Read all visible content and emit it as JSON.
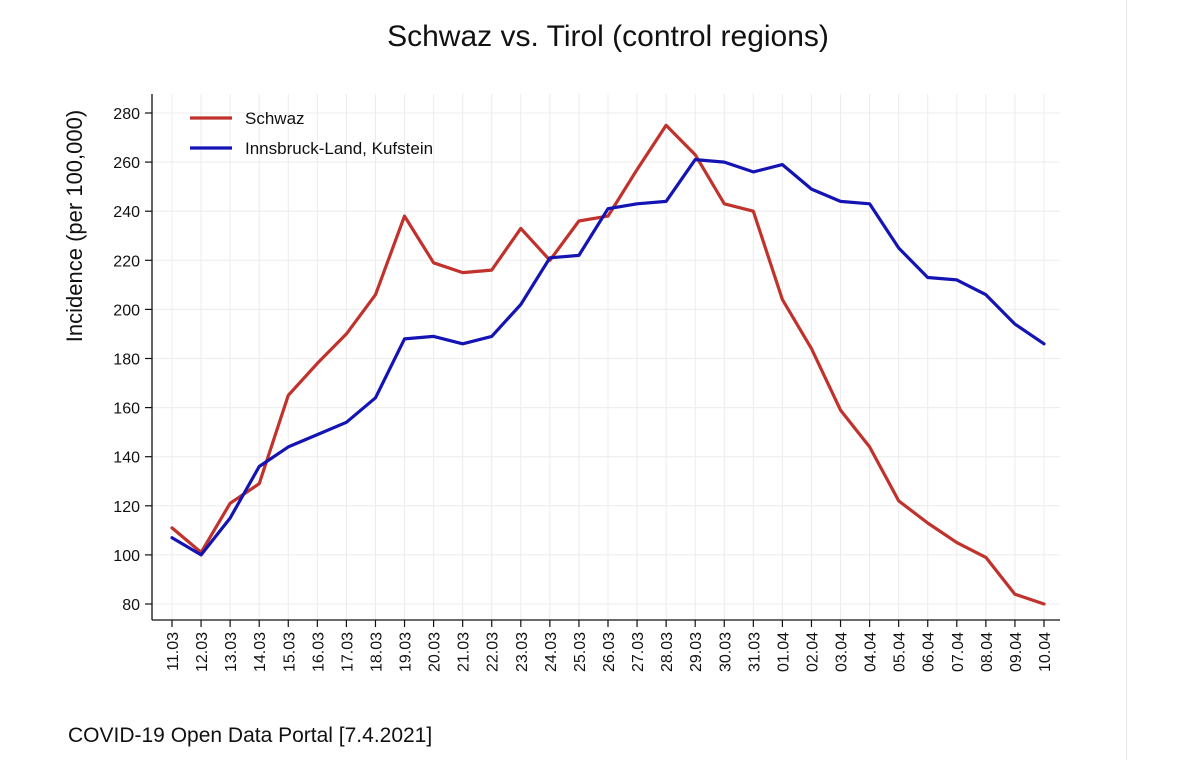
{
  "chart_data": {
    "type": "line",
    "title": "Schwaz vs. Tirol (control regions)",
    "xlabel": "",
    "ylabel": "Incidence (per 100,000)",
    "ylim": [
      80,
      280
    ],
    "yticks": [
      80,
      100,
      120,
      140,
      160,
      180,
      200,
      220,
      240,
      260,
      280
    ],
    "grid": true,
    "legend_position": "top-left",
    "categories": [
      "11.03",
      "12.03",
      "13.03",
      "14.03",
      "15.03",
      "16.03",
      "17.03",
      "18.03",
      "19.03",
      "20.03",
      "21.03",
      "22.03",
      "23.03",
      "24.03",
      "25.03",
      "26.03",
      "27.03",
      "28.03",
      "29.03",
      "30.03",
      "31.03",
      "01.04",
      "02.04",
      "03.04",
      "04.04",
      "05.04",
      "06.04",
      "07.04",
      "08.04",
      "09.04",
      "10.04"
    ],
    "series": [
      {
        "name": "Schwaz",
        "color": "#c0322b",
        "values": [
          111,
          101,
          121,
          129,
          165,
          178,
          190,
          206,
          238,
          219,
          215,
          216,
          233,
          220,
          236,
          238,
          257,
          275,
          263,
          243,
          240,
          204,
          184,
          159,
          144,
          122,
          113,
          105,
          99,
          84,
          80
        ]
      },
      {
        "name": "Innsbruck-Land, Kufstein",
        "color": "#1414b4",
        "values": [
          107,
          100,
          115,
          136,
          144,
          149,
          154,
          164,
          188,
          189,
          186,
          189,
          202,
          221,
          222,
          241,
          243,
          244,
          261,
          260,
          256,
          259,
          249,
          244,
          243,
          225,
          213,
          212,
          206,
          194,
          186
        ]
      }
    ],
    "source_note": "COVID-19 Open Data Portal [7.4.2021]"
  }
}
